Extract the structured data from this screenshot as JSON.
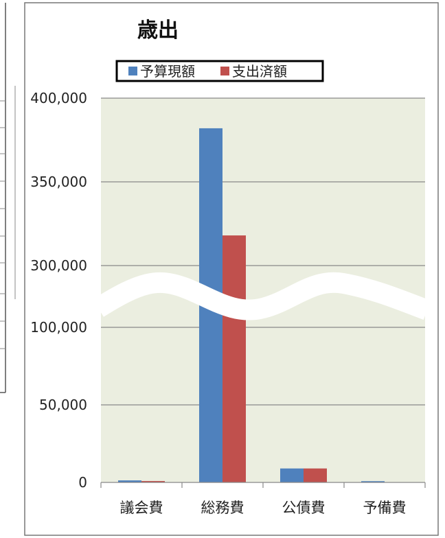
{
  "chart_data": {
    "type": "bar",
    "title": "歳出",
    "xlabel": "",
    "ylabel": "",
    "categories": [
      "議会費",
      "総務費",
      "公債費",
      "予備費"
    ],
    "series": [
      {
        "name": "予算現額",
        "color": "#4f81bd",
        "values": [
          1300,
          382000,
          9000,
          800
        ]
      },
      {
        "name": "支出済額",
        "color": "#c0504d",
        "values": [
          900,
          318000,
          9000,
          0
        ]
      }
    ],
    "broken_axis": {
      "lower_range": [
        0,
        100000
      ],
      "upper_range": [
        300000,
        400000
      ]
    },
    "y_ticks": [
      {
        "value": 0,
        "label": "0"
      },
      {
        "value": 50000,
        "label": "50,000"
      },
      {
        "value": 100000,
        "label": "100,000"
      },
      {
        "value": 300000,
        "label": "300,000"
      },
      {
        "value": 350000,
        "label": "350,000"
      },
      {
        "value": 400000,
        "label": "400,000"
      }
    ],
    "legend_position": "top",
    "grid": true,
    "plot_background": "#ebeee0",
    "gridline_color": "#888888"
  }
}
